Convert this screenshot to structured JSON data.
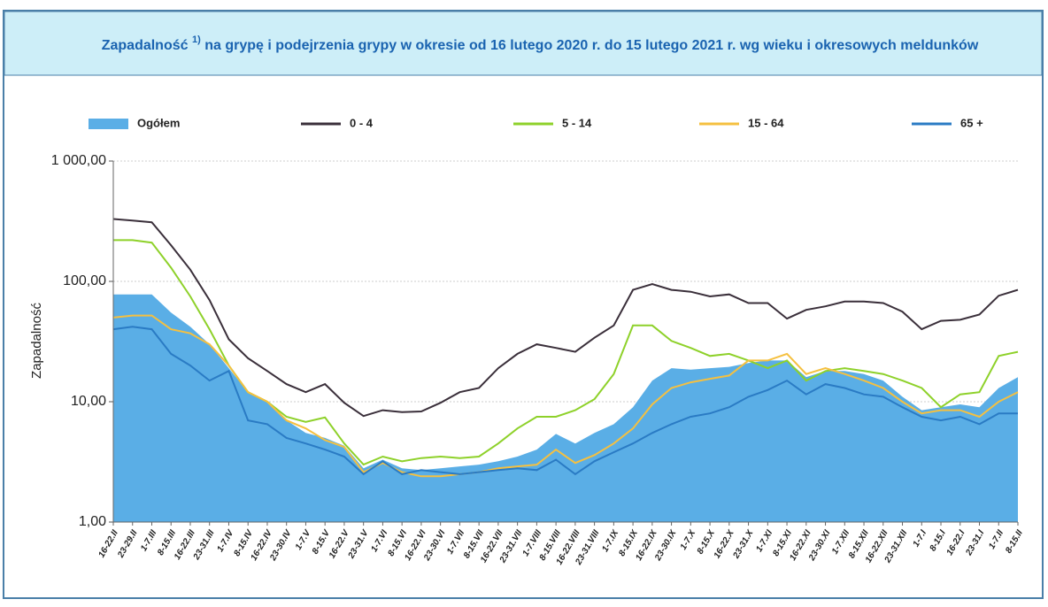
{
  "chart_data": {
    "type": "line",
    "title_parts": [
      "Zapadalność",
      "1)",
      "na grypę i podejrzenia grypy w okresie od 16 lutego 2020 r. do 15 lutego 2021 r. wg wieku i okresowych meldunków"
    ],
    "ylabel": "Zapadalność",
    "log_scale": true,
    "grid": true,
    "legend": "top",
    "x": [
      "16-22.II",
      "23-29.II",
      "1-7.III",
      "8-15.III",
      "16-22.III",
      "23-31.III",
      "1-7.IV",
      "8-15.IV",
      "16-22.IV",
      "23-30.IV",
      "1-7.V",
      "8-15.V",
      "16-22.V",
      "23-31.V",
      "1-7.VI",
      "8-15.VI",
      "16-22.VI",
      "23-30.VI",
      "1-7.VII",
      "8-15.VII",
      "16-22.VII",
      "23-31.VII",
      "1-7.VIII",
      "8-15.VIII",
      "16-22.VIII",
      "23-31.VIII",
      "1-7.IX",
      "8-15.IX",
      "16-22.IX",
      "23-30.IX",
      "1-7.X",
      "8-15.X",
      "16-22.X",
      "23-31.X",
      "1-7.XI",
      "8-15.XI",
      "16-22.XI",
      "23-30.XI",
      "1-7.XII",
      "8-15.XII",
      "16-22.XII",
      "23-31.XII",
      "1-7.I",
      "8-15.I",
      "16-22.I",
      "23-31.I",
      "1-7.II",
      "8-15.II"
    ],
    "ylim": [
      1,
      1000
    ],
    "yticks": [
      {
        "value": 1,
        "label": "1,00"
      },
      {
        "value": 10,
        "label": "10,00"
      },
      {
        "value": 100,
        "label": "100,00"
      },
      {
        "value": 1000,
        "label": "1 000,00"
      }
    ],
    "series": [
      {
        "name": "Ogółem",
        "style": "area",
        "color": "#5aaee6",
        "values": [
          78,
          78,
          78,
          55,
          42,
          30,
          19,
          12,
          10,
          7,
          5.5,
          5,
          4.3,
          2.8,
          3.3,
          2.8,
          2.7,
          2.8,
          2.9,
          3,
          3.2,
          3.5,
          4,
          5.4,
          4.5,
          5.5,
          6.5,
          9,
          15,
          19,
          18.5,
          19,
          19.5,
          21,
          22,
          22,
          16,
          18,
          18,
          17,
          15,
          11,
          8.5,
          9,
          9.5,
          9,
          13,
          16
        ]
      },
      {
        "name": "0 - 4",
        "style": "line",
        "color": "#3a2f3a",
        "values": [
          330,
          320,
          310,
          200,
          125,
          70,
          33,
          23,
          18,
          14,
          12,
          14,
          9.8,
          7.6,
          8.5,
          8.2,
          8.3,
          9.8,
          12,
          13,
          19,
          25,
          30,
          28,
          26,
          34,
          43,
          85,
          95,
          85,
          82,
          75,
          78,
          66,
          66,
          49,
          58,
          62,
          68,
          68,
          66,
          56,
          40,
          47,
          48,
          53,
          76,
          85
        ]
      },
      {
        "name": "5 - 14",
        "style": "line",
        "color": "#8ed12a",
        "values": [
          220,
          220,
          210,
          130,
          75,
          40,
          20,
          12,
          10,
          7.5,
          6.8,
          7.4,
          4.5,
          3,
          3.5,
          3.2,
          3.4,
          3.5,
          3.4,
          3.5,
          4.5,
          6,
          7.5,
          7.5,
          8.5,
          10.5,
          17,
          43,
          43,
          32,
          28,
          24,
          25,
          22,
          19,
          22,
          15,
          18,
          19,
          18,
          17,
          15,
          13,
          9,
          11.5,
          12,
          24,
          26
        ]
      },
      {
        "name": "15 - 64",
        "style": "line",
        "color": "#f5c040",
        "values": [
          50,
          52,
          52,
          40,
          37,
          30,
          20,
          12,
          10,
          7,
          6,
          4.8,
          4.2,
          2.6,
          3.1,
          2.6,
          2.4,
          2.4,
          2.5,
          2.6,
          2.8,
          2.9,
          3,
          4,
          3.1,
          3.6,
          4.5,
          6,
          9.5,
          13,
          14.5,
          15.5,
          16.5,
          22,
          22,
          25,
          17,
          19,
          17,
          15,
          13,
          10,
          8,
          8.5,
          8.5,
          7.5,
          10,
          12
        ]
      },
      {
        "name": "65 +",
        "style": "line",
        "color": "#2a7bc4",
        "values": [
          40,
          42,
          40,
          25,
          20,
          15,
          18,
          7,
          6.5,
          5,
          4.5,
          4,
          3.5,
          2.5,
          3.2,
          2.5,
          2.7,
          2.6,
          2.5,
          2.6,
          2.7,
          2.8,
          2.7,
          3.3,
          2.5,
          3.2,
          3.8,
          4.5,
          5.5,
          6.5,
          7.5,
          8,
          9,
          11,
          12.5,
          15,
          11.5,
          14,
          13,
          11.5,
          11,
          9,
          7.5,
          7,
          7.5,
          6.5,
          8,
          8
        ]
      }
    ]
  }
}
